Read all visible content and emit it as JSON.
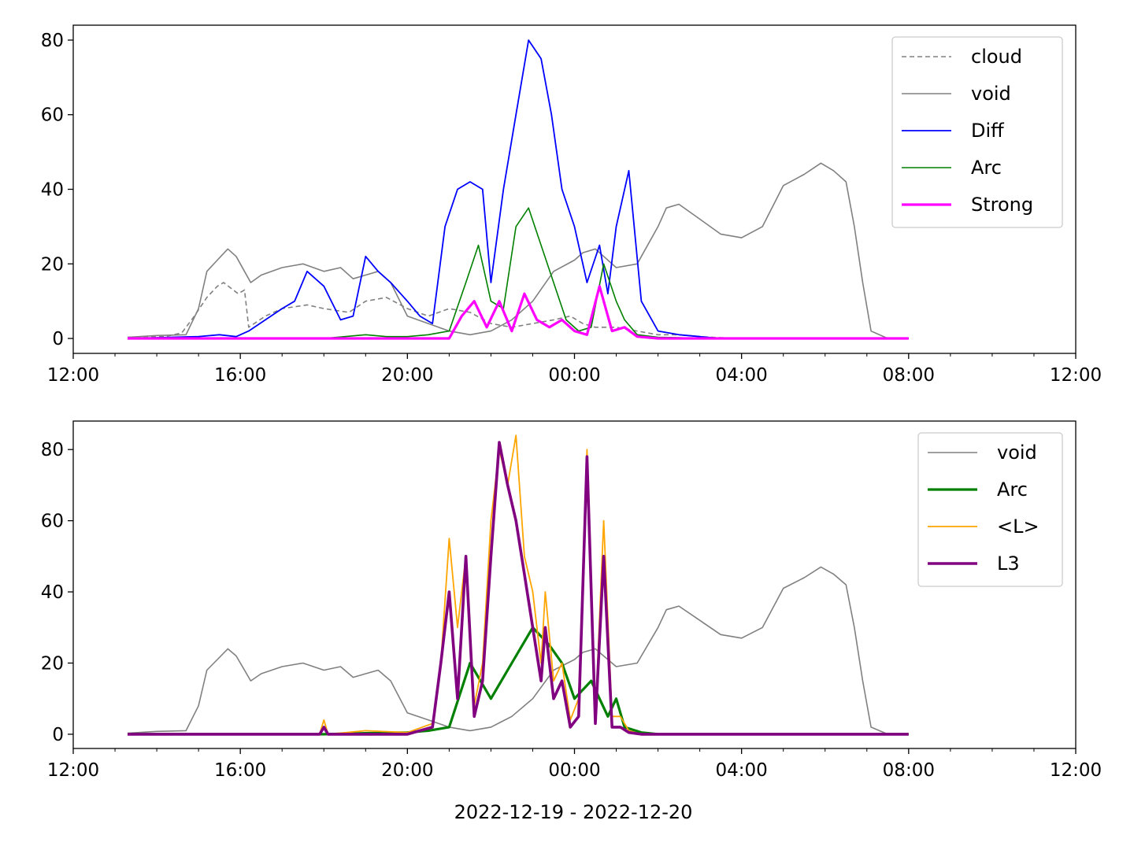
{
  "figure": {
    "xlabel": "2022-12-19 - 2022-12-20"
  },
  "chart_data": [
    {
      "type": "line",
      "xlabel": "",
      "ylabel": "",
      "xlim": [
        "12:00",
        "12:00 (+1 day)"
      ],
      "ylim": [
        -4,
        84
      ],
      "x_ticks": [
        "12:00",
        "16:00",
        "20:00",
        "00:00",
        "04:00",
        "08:00",
        "12:00"
      ],
      "y_ticks": [
        0,
        20,
        40,
        60,
        80
      ],
      "grid": false,
      "legend_position": "top-right",
      "x_unit": "hours since 2022-12-19 12:00",
      "series": [
        {
          "name": "cloud",
          "color": "#808080",
          "style": "dashed",
          "x": [
            1.3,
            2.2,
            2.6,
            2.9,
            3.2,
            3.45,
            3.6,
            3.95,
            4.1,
            4.2,
            4.6,
            5.0,
            5.6,
            6.0,
            6.6,
            7.0,
            7.5,
            8.0,
            8.5,
            9.0,
            9.5,
            10.0,
            10.5,
            11.0,
            11.5,
            11.9,
            12.2,
            12.5,
            13.0,
            13.5,
            14.0,
            14.5,
            15.0,
            15.5,
            16.0,
            16.5,
            17.0,
            17.5,
            18.0,
            18.5,
            19.1,
            19.5,
            20.0
          ],
          "y": [
            0.3,
            0.5,
            1.5,
            6,
            11,
            14,
            15,
            12,
            13,
            3,
            6,
            8,
            9,
            8,
            7,
            10,
            11,
            8,
            6,
            8,
            7,
            4,
            3,
            4,
            5,
            6,
            4,
            3,
            3,
            2,
            1,
            1,
            0.5,
            0.2,
            0,
            0,
            0,
            0,
            0,
            0,
            0,
            0,
            0
          ]
        },
        {
          "name": "void",
          "color": "#808080",
          "style": "solid",
          "x": [
            1.3,
            2.0,
            2.7,
            3.0,
            3.2,
            3.45,
            3.7,
            3.9,
            4.1,
            4.25,
            4.5,
            5.0,
            5.5,
            6.0,
            6.4,
            6.7,
            7.0,
            7.3,
            7.6,
            8.0,
            8.5,
            9.0,
            9.5,
            10.0,
            10.5,
            11.0,
            11.5,
            12.0,
            12.2,
            12.5,
            13.0,
            13.5,
            14.0,
            14.2,
            14.5,
            15.0,
            15.5,
            16.0,
            16.5,
            17.0,
            17.5,
            17.9,
            18.2,
            18.5,
            18.7,
            18.9,
            19.1,
            19.5,
            20.0
          ],
          "y": [
            0.3,
            0.8,
            1,
            8,
            18,
            21,
            24,
            22,
            18,
            15,
            17,
            19,
            20,
            18,
            19,
            16,
            17,
            18,
            15,
            6,
            4,
            2,
            1,
            2,
            5,
            10,
            18,
            21,
            23,
            24,
            19,
            20,
            30,
            35,
            36,
            32,
            28,
            27,
            30,
            41,
            44,
            47,
            45,
            42,
            30,
            15,
            2,
            0,
            0
          ]
        },
        {
          "name": "Diff",
          "color": "#0000ff",
          "style": "solid",
          "x": [
            1.3,
            3.0,
            3.5,
            3.9,
            4.2,
            4.6,
            5.0,
            5.3,
            5.6,
            6.0,
            6.4,
            6.7,
            7.0,
            7.3,
            7.6,
            8.0,
            8.3,
            8.6,
            8.9,
            9.2,
            9.5,
            9.8,
            10.0,
            10.3,
            10.6,
            10.9,
            11.2,
            11.45,
            11.7,
            12.0,
            12.3,
            12.6,
            12.8,
            13.0,
            13.3,
            13.6,
            14.0,
            14.5,
            15.0,
            15.5,
            16.0,
            17.0,
            18.0,
            19.0,
            20.0
          ],
          "y": [
            0,
            0.5,
            1,
            0.5,
            2,
            5,
            8,
            10,
            18,
            14,
            5,
            6,
            22,
            18,
            15,
            10,
            6,
            4,
            30,
            40,
            42,
            40,
            15,
            40,
            60,
            80,
            75,
            60,
            40,
            30,
            15,
            25,
            12,
            30,
            45,
            10,
            2,
            1,
            0.5,
            0,
            0,
            0,
            0,
            0,
            0
          ]
        },
        {
          "name": "Arc",
          "color": "#008000",
          "style": "solid",
          "x": [
            1.3,
            6.0,
            6.5,
            7.0,
            7.5,
            8.0,
            8.5,
            9.0,
            9.4,
            9.7,
            10.0,
            10.3,
            10.6,
            10.9,
            11.2,
            11.5,
            11.8,
            12.1,
            12.4,
            12.7,
            13.0,
            13.2,
            13.5,
            14.0,
            14.5,
            15.0,
            16.0,
            18.0,
            20.0
          ],
          "y": [
            0,
            0,
            0.5,
            1,
            0.5,
            0.5,
            1,
            2,
            15,
            25,
            10,
            8,
            30,
            35,
            25,
            15,
            5,
            2,
            3,
            20,
            10,
            5,
            1,
            0.3,
            0.2,
            0,
            0,
            0,
            0
          ]
        },
        {
          "name": "Strong",
          "color": "#ff00ff",
          "style": "solid",
          "x": [
            1.3,
            7.0,
            8.0,
            9.0,
            9.3,
            9.6,
            9.9,
            10.2,
            10.5,
            10.8,
            11.1,
            11.4,
            11.7,
            12.0,
            12.3,
            12.6,
            12.9,
            13.2,
            13.5,
            14.0,
            16.0,
            18.0,
            20.0
          ],
          "y": [
            0,
            0,
            0,
            0,
            6,
            10,
            3,
            10,
            2,
            12,
            5,
            3,
            5,
            2,
            1,
            14,
            2,
            3,
            0.5,
            0,
            0,
            0,
            0
          ]
        }
      ]
    },
    {
      "type": "line",
      "xlabel": "2022-12-19 - 2022-12-20",
      "ylabel": "",
      "xlim": [
        "12:00",
        "12:00 (+1 day)"
      ],
      "ylim": [
        -4,
        88
      ],
      "x_ticks": [
        "12:00",
        "16:00",
        "20:00",
        "00:00",
        "04:00",
        "08:00",
        "12:00"
      ],
      "y_ticks": [
        0,
        20,
        40,
        60,
        80
      ],
      "grid": false,
      "legend_position": "top-right",
      "x_unit": "hours since 2022-12-19 12:00",
      "series": [
        {
          "name": "void",
          "color": "#808080",
          "style": "solid",
          "x": [
            1.3,
            2.0,
            2.7,
            3.0,
            3.2,
            3.45,
            3.7,
            3.9,
            4.1,
            4.25,
            4.5,
            5.0,
            5.5,
            6.0,
            6.4,
            6.7,
            7.0,
            7.3,
            7.6,
            8.0,
            8.5,
            9.0,
            9.5,
            10.0,
            10.5,
            11.0,
            11.5,
            12.0,
            12.2,
            12.5,
            13.0,
            13.5,
            14.0,
            14.2,
            14.5,
            15.0,
            15.5,
            16.0,
            16.5,
            17.0,
            17.5,
            17.9,
            18.2,
            18.5,
            18.7,
            18.9,
            19.1,
            19.5,
            20.0
          ],
          "y": [
            0.3,
            0.8,
            1,
            8,
            18,
            21,
            24,
            22,
            18,
            15,
            17,
            19,
            20,
            18,
            19,
            16,
            17,
            18,
            15,
            6,
            4,
            2,
            1,
            2,
            5,
            10,
            18,
            21,
            23,
            24,
            19,
            20,
            30,
            35,
            36,
            32,
            28,
            27,
            30,
            41,
            44,
            47,
            45,
            42,
            30,
            15,
            2,
            0,
            0
          ]
        },
        {
          "name": "Arc",
          "color": "#008000",
          "style": "solid",
          "x": [
            1.3,
            6.0,
            7.0,
            8.0,
            8.5,
            9.0,
            9.5,
            10.0,
            10.5,
            11.0,
            11.4,
            11.7,
            12.0,
            12.4,
            12.8,
            13.0,
            13.2,
            13.6,
            14.0,
            16.0,
            20.0
          ],
          "y": [
            0,
            0,
            0.3,
            0.5,
            1,
            2,
            20,
            10,
            20,
            30,
            25,
            20,
            10,
            15,
            5,
            10,
            2,
            0.5,
            0,
            0,
            0
          ]
        },
        {
          "name": "<L>",
          "color": "#ffa500",
          "style": "solid",
          "x": [
            1.3,
            5.9,
            6.0,
            6.1,
            7.0,
            8.0,
            8.6,
            8.8,
            9.0,
            9.2,
            9.4,
            9.6,
            9.8,
            10.0,
            10.2,
            10.4,
            10.6,
            10.8,
            11.0,
            11.2,
            11.3,
            11.5,
            11.7,
            11.9,
            12.1,
            12.3,
            12.5,
            12.7,
            12.9,
            13.1,
            13.3,
            13.6,
            14.0,
            16.0,
            20.0
          ],
          "y": [
            0,
            0,
            4,
            0,
            1,
            0.5,
            3,
            20,
            55,
            30,
            50,
            8,
            20,
            60,
            80,
            70,
            84,
            50,
            40,
            20,
            40,
            15,
            20,
            4,
            10,
            80,
            5,
            60,
            5,
            5,
            1,
            0,
            0,
            0,
            0
          ]
        },
        {
          "name": "L3",
          "color": "#800080",
          "style": "solid",
          "x": [
            1.3,
            5.9,
            6.0,
            6.1,
            8.0,
            8.6,
            8.8,
            9.0,
            9.2,
            9.4,
            9.6,
            9.8,
            10.0,
            10.2,
            10.4,
            10.6,
            10.8,
            11.0,
            11.2,
            11.3,
            11.5,
            11.7,
            11.9,
            12.1,
            12.3,
            12.5,
            12.7,
            12.9,
            13.1,
            13.3,
            13.6,
            14.0,
            16.0,
            20.0
          ],
          "y": [
            0,
            0,
            2,
            0,
            0,
            2,
            20,
            40,
            10,
            50,
            5,
            15,
            50,
            82,
            70,
            60,
            45,
            30,
            15,
            30,
            10,
            15,
            2,
            5,
            78,
            3,
            50,
            2,
            2,
            0.5,
            0,
            0,
            0,
            0
          ]
        }
      ]
    }
  ]
}
